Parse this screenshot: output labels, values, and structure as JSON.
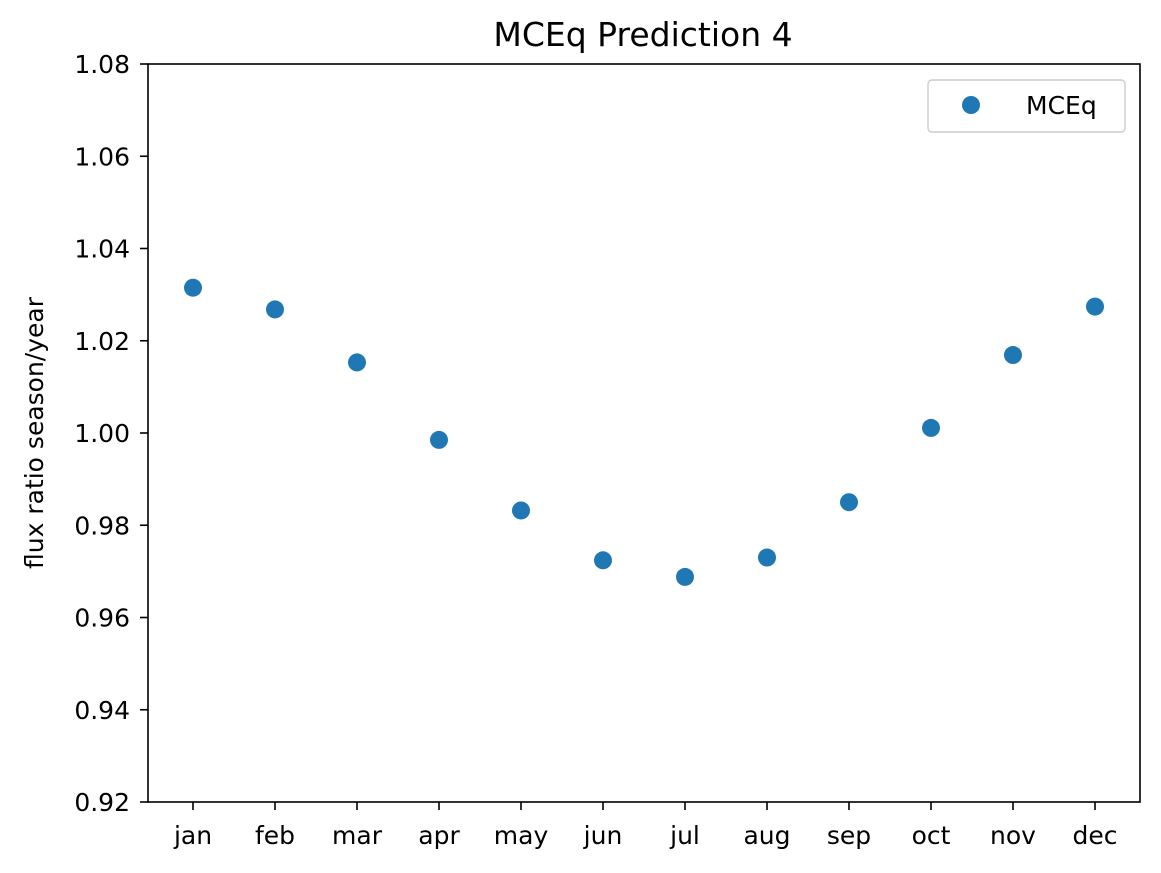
{
  "chart_data": {
    "type": "scatter",
    "title": "MCEq Prediction 4",
    "xlabel": "",
    "ylabel": "flux ratio season/year",
    "categories": [
      "jan",
      "feb",
      "mar",
      "apr",
      "may",
      "jun",
      "jul",
      "aug",
      "sep",
      "oct",
      "nov",
      "dec"
    ],
    "series": [
      {
        "name": "MCEq",
        "color": "#1f77b4",
        "values": [
          1.0315,
          1.0268,
          1.0153,
          0.9985,
          0.9832,
          0.9724,
          0.9688,
          0.973,
          0.985,
          1.0011,
          1.0169,
          1.0274
        ]
      }
    ],
    "ylim": [
      0.92,
      1.08
    ],
    "yticks": [
      "0.92",
      "0.94",
      "0.96",
      "0.98",
      "1.00",
      "1.02",
      "1.04",
      "1.06",
      "1.08"
    ],
    "grid": false,
    "legend": "top-right"
  }
}
